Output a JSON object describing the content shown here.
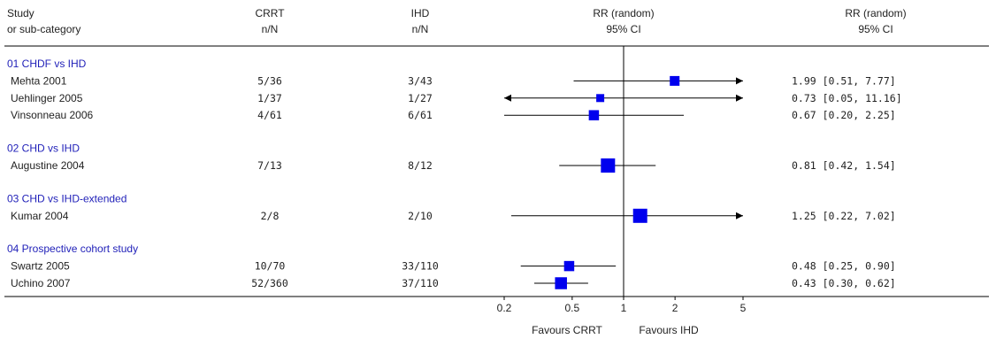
{
  "colors": {
    "marker": "#0000ee",
    "subgroup_text": "#1f1fb8",
    "line": "#000000",
    "text": "#222222"
  },
  "header": {
    "study_line1": "Study",
    "study_line2": "or sub-category",
    "crrt_line1": "CRRT",
    "crrt_line2": "n/N",
    "ihd_line1": "IHD",
    "ihd_line2": "n/N",
    "plot_line1": "RR (random)",
    "plot_line2": "95% CI",
    "rr_line1": "RR (random)",
    "rr_line2": "95% CI"
  },
  "chart_data": {
    "type": "forest",
    "scale": "log",
    "xlim": [
      0.2,
      5
    ],
    "reference_line": 1,
    "x_ticks": [
      "0.2",
      "0.5",
      "1",
      "2",
      "5"
    ],
    "x_tick_values": [
      0.2,
      0.5,
      1,
      2,
      5
    ],
    "favours_left": "Favours CRRT",
    "favours_right": "Favours IHD",
    "groups": [
      {
        "label": "01 CHDF vs IHD",
        "studies": [
          {
            "name": "Mehta 2001",
            "crrt": "5/36",
            "ihd": "3/43",
            "rr": 1.99,
            "lo": 0.51,
            "hi": 7.77,
            "ci_text": "1.99 [0.51, 7.77]",
            "weight": 0.5
          },
          {
            "name": "Uehlinger 2005",
            "crrt": "1/37",
            "ihd": "1/27",
            "rr": 0.73,
            "lo": 0.05,
            "hi": 11.16,
            "ci_text": "0.73 [0.05, 11.16]",
            "weight": 0.3
          },
          {
            "name": "Vinsonneau 2006",
            "crrt": "4/61",
            "ihd": "6/61",
            "rr": 0.67,
            "lo": 0.2,
            "hi": 2.25,
            "ci_text": "0.67 [0.20, 2.25]",
            "weight": 0.55
          }
        ]
      },
      {
        "label": "02 CHD vs IHD",
        "studies": [
          {
            "name": "Augustine 2004",
            "crrt": "7/13",
            "ihd": "8/12",
            "rr": 0.81,
            "lo": 0.42,
            "hi": 1.54,
            "ci_text": "0.81 [0.42, 1.54]",
            "weight": 1.0
          }
        ]
      },
      {
        "label": "03 CHD vs IHD-extended",
        "studies": [
          {
            "name": "Kumar 2004",
            "crrt": "2/8",
            "ihd": "2/10",
            "rr": 1.25,
            "lo": 0.22,
            "hi": 7.02,
            "ci_text": "1.25 [0.22, 7.02]",
            "weight": 1.0
          }
        ]
      },
      {
        "label": "04 Prospective cohort study",
        "studies": [
          {
            "name": "Swartz 2005",
            "crrt": "10/70",
            "ihd": "33/110",
            "rr": 0.48,
            "lo": 0.25,
            "hi": 0.9,
            "ci_text": "0.48 [0.25, 0.90]",
            "weight": 0.55
          },
          {
            "name": "Uchino 2007",
            "crrt": "52/360",
            "ihd": "37/110",
            "rr": 0.43,
            "lo": 0.3,
            "hi": 0.62,
            "ci_text": "0.43 [0.30, 0.62]",
            "weight": 0.75
          }
        ]
      }
    ]
  }
}
